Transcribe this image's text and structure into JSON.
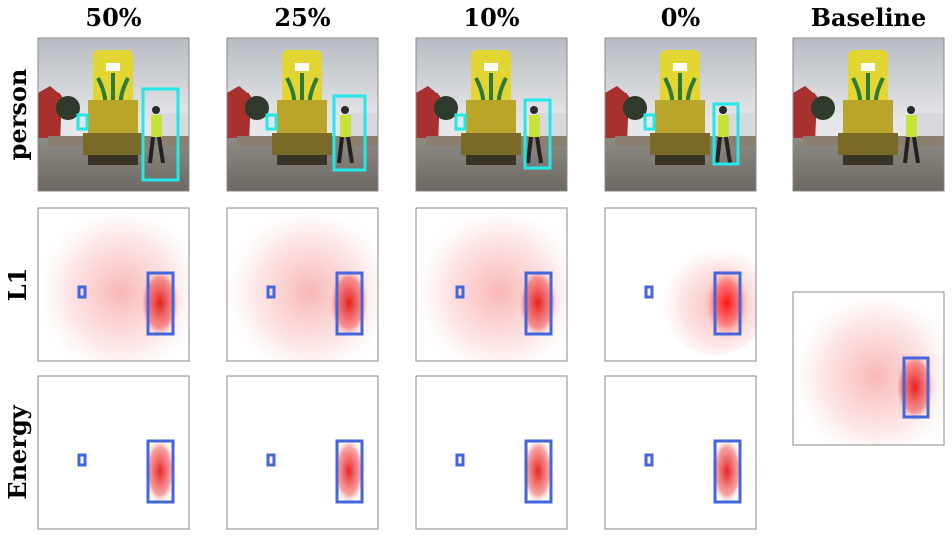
{
  "columns": [
    "50%",
    "25%",
    "10%",
    "0%",
    "Baseline"
  ],
  "rows": [
    "person",
    "L1",
    "Energy"
  ]
}
